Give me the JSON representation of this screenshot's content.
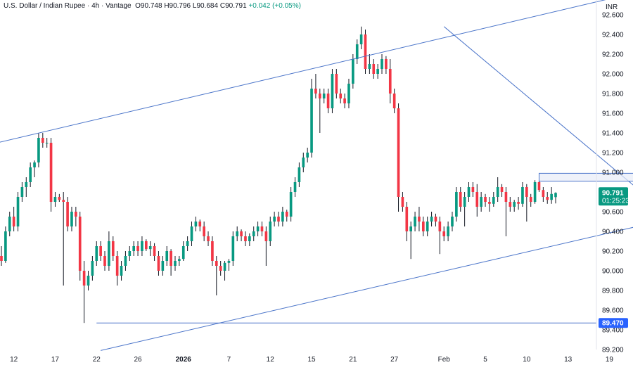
{
  "header": {
    "symbol": "U.S. Dollar / Indian Rupee",
    "interval": "4h",
    "source": "Vantage",
    "open": "O90.748",
    "high": "H90.796",
    "low": "L90.684",
    "close": "C90.791",
    "change": "+0.042 (+0.05%)"
  },
  "colors": {
    "up": "#089981",
    "down": "#f23645",
    "wick": "#131722",
    "trendline": "#4a74c9",
    "horizontal_line": "#4a74c9",
    "zone_fill": "#e8edf8",
    "last_price_bg": "#089981",
    "level_tag_bg": "#2962ff"
  },
  "chart_data": {
    "type": "candlestick",
    "currency": "INR",
    "ylim": [
      89.2,
      92.75
    ],
    "y_ticks": [
      "92.600",
      "92.400",
      "92.200",
      "92.000",
      "91.800",
      "91.600",
      "91.400",
      "91.200",
      "91.000",
      "90.800",
      "90.600",
      "90.400",
      "90.200",
      "90.000",
      "89.800",
      "89.600",
      "89.400",
      "89.200"
    ],
    "x_ticks": [
      {
        "label": "12",
        "i": 3,
        "bold": false
      },
      {
        "label": "17",
        "i": 13,
        "bold": false
      },
      {
        "label": "22",
        "i": 23,
        "bold": false
      },
      {
        "label": "26",
        "i": 33,
        "bold": false
      },
      {
        "label": "2026",
        "i": 44,
        "bold": true
      },
      {
        "label": "7",
        "i": 55,
        "bold": false
      },
      {
        "label": "12",
        "i": 65,
        "bold": false
      },
      {
        "label": "15",
        "i": 75,
        "bold": false
      },
      {
        "label": "21",
        "i": 85,
        "bold": false
      },
      {
        "label": "27",
        "i": 95,
        "bold": false
      },
      {
        "label": "Feb",
        "i": 107,
        "bold": false
      },
      {
        "label": "5",
        "i": 117,
        "bold": false
      },
      {
        "label": "10",
        "i": 127,
        "bold": false
      },
      {
        "label": "13",
        "i": 137,
        "bold": false
      },
      {
        "label": "19",
        "i": 147,
        "bold": false
      }
    ],
    "series": [
      {
        "values": [
          [
            90.15,
            90.25,
            90.05,
            90.1
          ],
          [
            90.1,
            90.45,
            90.08,
            90.4
          ],
          [
            90.4,
            90.6,
            90.35,
            90.55
          ],
          [
            90.55,
            90.65,
            90.4,
            90.45
          ],
          [
            90.45,
            90.8,
            90.4,
            90.75
          ],
          [
            90.75,
            90.9,
            90.7,
            90.85
          ],
          [
            90.85,
            90.95,
            90.75,
            90.9
          ],
          [
            90.9,
            91.1,
            90.85,
            91.05
          ],
          [
            91.05,
            91.12,
            90.95,
            91.1
          ],
          [
            91.1,
            91.4,
            91.05,
            91.35
          ],
          [
            91.35,
            91.4,
            91.25,
            91.3
          ],
          [
            91.3,
            91.35,
            91.25,
            91.3
          ],
          [
            91.3,
            91.35,
            90.6,
            90.7
          ],
          [
            90.7,
            90.8,
            90.65,
            90.75
          ],
          [
            90.75,
            90.78,
            90.7,
            90.72
          ],
          [
            90.72,
            90.8,
            89.85,
            90.7
          ],
          [
            90.7,
            90.75,
            90.4,
            90.45
          ],
          [
            90.45,
            90.65,
            90.4,
            90.6
          ],
          [
            90.6,
            90.65,
            90.45,
            90.55
          ],
          [
            90.55,
            90.6,
            89.9,
            90.0
          ],
          [
            90.0,
            90.1,
            89.47,
            89.85
          ],
          [
            89.85,
            90.0,
            89.8,
            89.95
          ],
          [
            89.95,
            90.15,
            89.9,
            90.1
          ],
          [
            90.1,
            90.3,
            90.05,
            90.25
          ],
          [
            90.25,
            90.3,
            90.1,
            90.15
          ],
          [
            90.15,
            90.2,
            90.0,
            90.05
          ],
          [
            90.05,
            90.4,
            90.0,
            90.3
          ],
          [
            90.3,
            90.35,
            90.1,
            90.15
          ],
          [
            90.15,
            90.2,
            89.85,
            89.95
          ],
          [
            89.95,
            90.1,
            89.9,
            90.05
          ],
          [
            90.05,
            90.2,
            90.0,
            90.15
          ],
          [
            90.15,
            90.25,
            90.1,
            90.2
          ],
          [
            90.2,
            90.3,
            90.15,
            90.25
          ],
          [
            90.25,
            90.3,
            90.15,
            90.2
          ],
          [
            90.2,
            90.35,
            90.15,
            90.3
          ],
          [
            90.3,
            90.32,
            90.2,
            90.22
          ],
          [
            90.22,
            90.3,
            90.15,
            90.25
          ],
          [
            90.25,
            90.28,
            90.1,
            90.15
          ],
          [
            90.15,
            90.2,
            89.95,
            90.0
          ],
          [
            90.0,
            90.15,
            89.95,
            90.1
          ],
          [
            90.1,
            90.25,
            90.05,
            90.2
          ],
          [
            90.2,
            90.22,
            89.95,
            90.05
          ],
          [
            90.05,
            90.15,
            90.0,
            90.1
          ],
          [
            90.1,
            90.15,
            90.05,
            90.12
          ],
          [
            90.12,
            90.3,
            90.1,
            90.25
          ],
          [
            90.25,
            90.35,
            90.2,
            90.3
          ],
          [
            90.3,
            90.5,
            90.25,
            90.45
          ],
          [
            90.45,
            90.55,
            90.4,
            90.5
          ],
          [
            90.5,
            90.52,
            90.4,
            90.45
          ],
          [
            90.45,
            90.5,
            90.3,
            90.35
          ],
          [
            90.35,
            90.4,
            90.25,
            90.3
          ],
          [
            90.3,
            90.35,
            90.05,
            90.1
          ],
          [
            90.1,
            90.15,
            89.75,
            90.05
          ],
          [
            90.05,
            90.1,
            89.95,
            90.0
          ],
          [
            90.0,
            90.1,
            89.9,
            90.08
          ],
          [
            90.08,
            90.12,
            90.0,
            90.1
          ],
          [
            90.1,
            90.4,
            90.05,
            90.35
          ],
          [
            90.35,
            90.45,
            90.3,
            90.4
          ],
          [
            90.4,
            90.42,
            90.3,
            90.35
          ],
          [
            90.35,
            90.4,
            90.25,
            90.3
          ],
          [
            90.3,
            90.38,
            90.25,
            90.35
          ],
          [
            90.35,
            90.45,
            90.3,
            90.4
          ],
          [
            90.4,
            90.5,
            90.35,
            90.45
          ],
          [
            90.45,
            90.5,
            90.35,
            90.4
          ],
          [
            90.4,
            90.45,
            90.05,
            90.3
          ],
          [
            90.3,
            90.55,
            90.25,
            90.5
          ],
          [
            90.5,
            90.6,
            90.45,
            90.55
          ],
          [
            90.55,
            90.6,
            90.45,
            90.5
          ],
          [
            90.5,
            90.65,
            90.45,
            90.6
          ],
          [
            90.6,
            90.62,
            90.5,
            90.55
          ],
          [
            90.55,
            90.85,
            90.5,
            90.8
          ],
          [
            90.8,
            90.95,
            90.75,
            90.9
          ],
          [
            90.9,
            91.1,
            90.85,
            91.05
          ],
          [
            91.05,
            91.2,
            91.0,
            91.15
          ],
          [
            91.15,
            91.25,
            91.1,
            91.2
          ],
          [
            91.2,
            91.95,
            91.15,
            91.85
          ],
          [
            91.85,
            92.0,
            91.75,
            91.8
          ],
          [
            91.8,
            91.85,
            91.4,
            91.75
          ],
          [
            91.75,
            91.85,
            91.7,
            91.8
          ],
          [
            91.8,
            91.85,
            91.6,
            91.65
          ],
          [
            91.65,
            92.05,
            91.6,
            92.0
          ],
          [
            92.0,
            92.05,
            91.75,
            91.8
          ],
          [
            91.8,
            91.85,
            91.7,
            91.75
          ],
          [
            91.75,
            91.8,
            91.65,
            91.7
          ],
          [
            91.7,
            91.95,
            91.65,
            91.9
          ],
          [
            91.9,
            92.2,
            91.85,
            92.15
          ],
          [
            92.15,
            92.35,
            92.1,
            92.3
          ],
          [
            92.3,
            92.48,
            92.25,
            92.4
          ],
          [
            92.4,
            92.45,
            92.0,
            92.05
          ],
          [
            92.05,
            92.2,
            92.0,
            92.1
          ],
          [
            92.1,
            92.15,
            91.95,
            92.0
          ],
          [
            92.0,
            92.1,
            91.95,
            92.05
          ],
          [
            92.05,
            92.2,
            92.0,
            92.15
          ],
          [
            92.15,
            92.18,
            92.0,
            92.05
          ],
          [
            92.05,
            92.15,
            91.7,
            91.8
          ],
          [
            91.8,
            91.85,
            91.6,
            91.65
          ],
          [
            91.65,
            91.7,
            90.6,
            90.75
          ],
          [
            90.75,
            90.8,
            90.6,
            90.65
          ],
          [
            90.65,
            90.7,
            90.3,
            90.4
          ],
          [
            90.4,
            90.5,
            90.12,
            90.45
          ],
          [
            90.45,
            90.6,
            90.4,
            90.55
          ],
          [
            90.55,
            90.65,
            90.4,
            90.5
          ],
          [
            90.5,
            90.55,
            90.35,
            90.4
          ],
          [
            90.4,
            90.55,
            90.35,
            90.5
          ],
          [
            90.5,
            90.6,
            90.45,
            90.55
          ],
          [
            90.55,
            90.58,
            90.45,
            90.5
          ],
          [
            90.5,
            90.55,
            90.17,
            90.4
          ],
          [
            90.4,
            90.45,
            90.3,
            90.35
          ],
          [
            90.35,
            90.5,
            90.3,
            90.45
          ],
          [
            90.45,
            90.6,
            90.4,
            90.55
          ],
          [
            90.55,
            90.85,
            90.5,
            90.8
          ],
          [
            90.8,
            90.85,
            90.6,
            90.65
          ],
          [
            90.65,
            90.8,
            90.45,
            90.75
          ],
          [
            90.75,
            90.9,
            90.7,
            90.85
          ],
          [
            90.85,
            90.9,
            90.75,
            90.8
          ],
          [
            90.8,
            90.88,
            90.55,
            90.65
          ],
          [
            90.65,
            90.8,
            90.6,
            90.75
          ],
          [
            90.75,
            90.78,
            90.65,
            90.7
          ],
          [
            90.7,
            90.75,
            90.6,
            90.68
          ],
          [
            90.68,
            90.8,
            90.65,
            90.75
          ],
          [
            90.75,
            90.95,
            90.7,
            90.85
          ],
          [
            90.85,
            90.88,
            90.75,
            90.8
          ],
          [
            90.8,
            90.85,
            90.35,
            90.7
          ],
          [
            90.7,
            90.75,
            90.6,
            90.65
          ],
          [
            90.65,
            90.72,
            90.6,
            90.7
          ],
          [
            90.7,
            90.75,
            90.62,
            90.68
          ],
          [
            90.68,
            90.9,
            90.65,
            90.85
          ],
          [
            90.85,
            90.88,
            90.5,
            90.75
          ],
          [
            90.75,
            90.78,
            90.65,
            90.7
          ],
          [
            90.7,
            90.92,
            90.68,
            90.9
          ],
          [
            90.9,
            90.92,
            90.8,
            90.82
          ],
          [
            90.82,
            90.85,
            90.7,
            90.75
          ],
          [
            90.75,
            90.8,
            90.68,
            90.72
          ],
          [
            90.72,
            90.85,
            90.68,
            90.78
          ],
          [
            90.748,
            90.796,
            90.684,
            90.791
          ]
        ]
      }
    ],
    "channel_upper": [
      [
        -5,
        91.26
      ],
      [
        166,
        92.95
      ]
    ],
    "channel_lower": [
      [
        24,
        89.19
      ],
      [
        165,
        90.56
      ]
    ],
    "descending_trend": [
      [
        107,
        92.48
      ],
      [
        163,
        90.51
      ]
    ],
    "resistance_zone": {
      "x0": 130,
      "x1": 160,
      "y_low": 90.91,
      "y_high": 90.99
    },
    "horizontal_level": {
      "value": 89.47,
      "from_i": 23
    },
    "last_price": {
      "value": "90.791",
      "countdown": "01:25:23"
    },
    "level_label": "89.470"
  }
}
